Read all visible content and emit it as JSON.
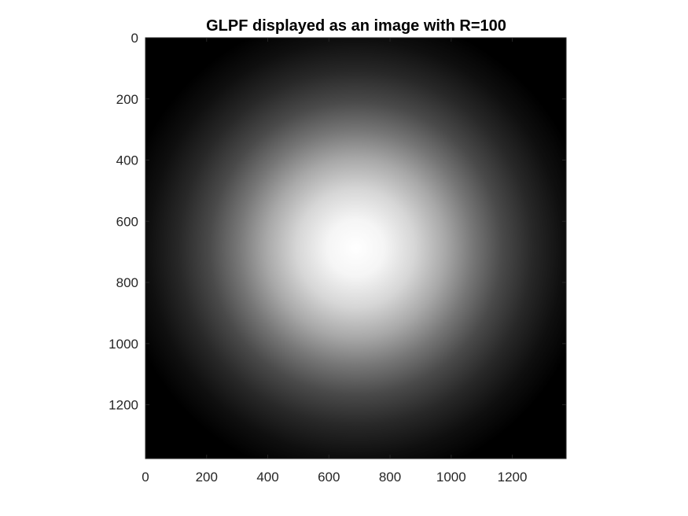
{
  "chart_data": {
    "type": "heatmap",
    "title": "GLPF displayed as an image with R=100",
    "xlabel": "",
    "ylabel": "",
    "colormap": "gray",
    "background_color": "#000000",
    "peak_color": "#ffffff",
    "image_size": [
      1376,
      1376
    ],
    "filter_center": [
      688,
      688
    ],
    "xlim": [
      0,
      1376
    ],
    "ylim": [
      0,
      1376
    ],
    "y_reversed": true,
    "xticks": [
      0,
      200,
      400,
      600,
      800,
      1000,
      1200
    ],
    "yticks": [
      0,
      200,
      400,
      600,
      800,
      1000,
      1200
    ],
    "xtick_labels": [
      "0",
      "200",
      "400",
      "600",
      "800",
      "1000",
      "1200"
    ],
    "ytick_labels": [
      "0",
      "200",
      "400",
      "600",
      "800",
      "1000",
      "1200"
    ],
    "grid": false
  }
}
